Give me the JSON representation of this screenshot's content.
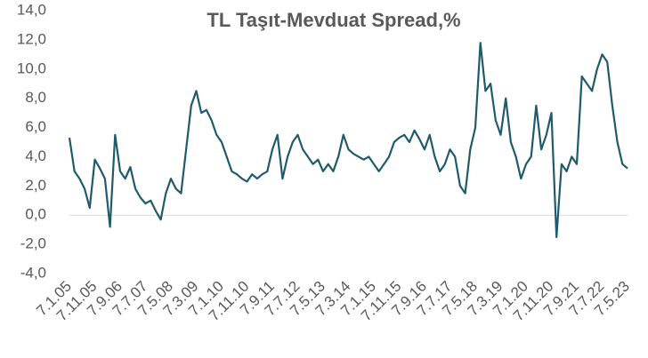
{
  "chart_data": {
    "type": "line",
    "title": "TL Taşıt-Mevduat Spread,%",
    "categories": [
      "7.1.05",
      null,
      null,
      null,
      null,
      "7.11.05",
      null,
      null,
      null,
      null,
      "7.9.06",
      null,
      null,
      null,
      null,
      "7.7.07",
      null,
      null,
      null,
      null,
      "7.5.08",
      null,
      null,
      null,
      null,
      "7.3.09",
      null,
      null,
      null,
      null,
      "7.1.10",
      null,
      null,
      null,
      null,
      "7.11.10",
      null,
      null,
      null,
      null,
      "7.9.11",
      null,
      null,
      null,
      null,
      "7.7.12",
      null,
      null,
      null,
      null,
      "7.5.13",
      null,
      null,
      null,
      null,
      "7.3.14",
      null,
      null,
      null,
      null,
      "7.1.15",
      null,
      null,
      null,
      null,
      "7.11.15",
      null,
      null,
      null,
      null,
      "7.9.16",
      null,
      null,
      null,
      null,
      "7.7.17",
      null,
      null,
      null,
      null,
      "7.5.18",
      null,
      null,
      null,
      null,
      "7.3.19",
      null,
      null,
      null,
      null,
      "7.1.20",
      null,
      null,
      null,
      null,
      "7.11.20",
      null,
      null,
      null,
      null,
      "7.9.21",
      null,
      null,
      null,
      null,
      "7.7.22",
      null,
      null,
      null,
      null,
      "7.5.23"
    ],
    "series": [
      {
        "name": "TL Taşıt-Mevduat Spread",
        "color": "#1f5b6b",
        "values": [
          5.3,
          3.0,
          2.5,
          1.8,
          0.5,
          3.8,
          3.2,
          2.5,
          -0.8,
          5.5,
          3.0,
          2.5,
          3.3,
          1.8,
          1.2,
          0.8,
          1.0,
          0.3,
          -0.3,
          1.5,
          2.5,
          1.8,
          1.5,
          4.5,
          7.5,
          8.5,
          7.0,
          7.2,
          6.5,
          5.5,
          5.0,
          4.0,
          3.0,
          2.8,
          2.5,
          2.3,
          2.8,
          2.5,
          2.8,
          3.0,
          4.5,
          5.5,
          2.5,
          4.0,
          5.0,
          5.5,
          4.5,
          4.0,
          3.5,
          3.8,
          3.0,
          3.5,
          3.0,
          4.0,
          5.5,
          4.5,
          4.2,
          4.0,
          3.8,
          4.0,
          3.5,
          3.0,
          3.5,
          4.0,
          5.0,
          5.3,
          5.5,
          5.0,
          5.8,
          5.2,
          4.5,
          5.5,
          4.0,
          3.0,
          3.5,
          4.5,
          4.0,
          2.0,
          1.5,
          4.5,
          6.0,
          11.8,
          8.5,
          9.0,
          6.5,
          5.5,
          8.0,
          5.0,
          4.0,
          2.5,
          3.5,
          4.0,
          7.5,
          4.5,
          5.5,
          7.0,
          -1.5,
          3.5,
          3.0,
          4.0,
          3.5,
          9.5,
          9.0,
          8.5,
          10.0,
          11.0,
          10.5,
          7.5,
          5.0,
          3.5,
          3.2
        ]
      }
    ],
    "ylim": [
      -4,
      14
    ],
    "yticks": [
      {
        "value": -4,
        "label": "-4,0"
      },
      {
        "value": -2,
        "label": "-2,0"
      },
      {
        "value": 0,
        "label": "0,0"
      },
      {
        "value": 2,
        "label": "2,0"
      },
      {
        "value": 4,
        "label": "4,0"
      },
      {
        "value": 6,
        "label": "6,0"
      },
      {
        "value": 8,
        "label": "8,0"
      },
      {
        "value": 10,
        "label": "10,0"
      },
      {
        "value": 12,
        "label": "12,0"
      },
      {
        "value": 14,
        "label": "14,0"
      }
    ],
    "grid": false
  }
}
